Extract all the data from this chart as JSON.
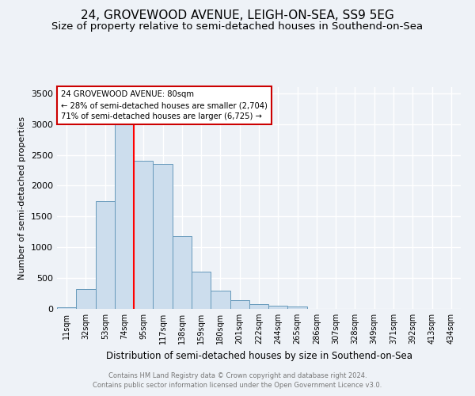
{
  "title1": "24, GROVEWOOD AVENUE, LEIGH-ON-SEA, SS9 5EG",
  "title2": "Size of property relative to semi-detached houses in Southend-on-Sea",
  "xlabel": "Distribution of semi-detached houses by size in Southend-on-Sea",
  "ylabel": "Number of semi-detached properties",
  "footer1": "Contains HM Land Registry data © Crown copyright and database right 2024.",
  "footer2": "Contains public sector information licensed under the Open Government Licence v3.0.",
  "annotation_title": "24 GROVEWOOD AVENUE: 80sqm",
  "annotation_line2": "← 28% of semi-detached houses are smaller (2,704)",
  "annotation_line3": "71% of semi-detached houses are larger (6,725) →",
  "bar_labels": [
    "11sqm",
    "32sqm",
    "53sqm",
    "74sqm",
    "95sqm",
    "117sqm",
    "138sqm",
    "159sqm",
    "180sqm",
    "201sqm",
    "222sqm",
    "244sqm",
    "265sqm",
    "286sqm",
    "307sqm",
    "328sqm",
    "349sqm",
    "371sqm",
    "392sqm",
    "413sqm",
    "434sqm"
  ],
  "bar_values": [
    20,
    320,
    1750,
    3050,
    2400,
    2350,
    1180,
    600,
    300,
    140,
    80,
    55,
    35,
    0,
    0,
    0,
    0,
    0,
    0,
    0,
    0
  ],
  "bar_color": "#ccdded",
  "bar_edge_color": "#6699bb",
  "red_line_x": 3.5,
  "ylim": [
    0,
    3600
  ],
  "yticks": [
    0,
    500,
    1000,
    1500,
    2000,
    2500,
    3000,
    3500
  ],
  "background_color": "#eef2f7",
  "plot_bg_color": "#eef2f7",
  "grid_color": "#ffffff",
  "title_fontsize": 11,
  "subtitle_fontsize": 9.5,
  "annotation_box_color": "#ffffff",
  "annotation_box_edge": "#cc0000"
}
